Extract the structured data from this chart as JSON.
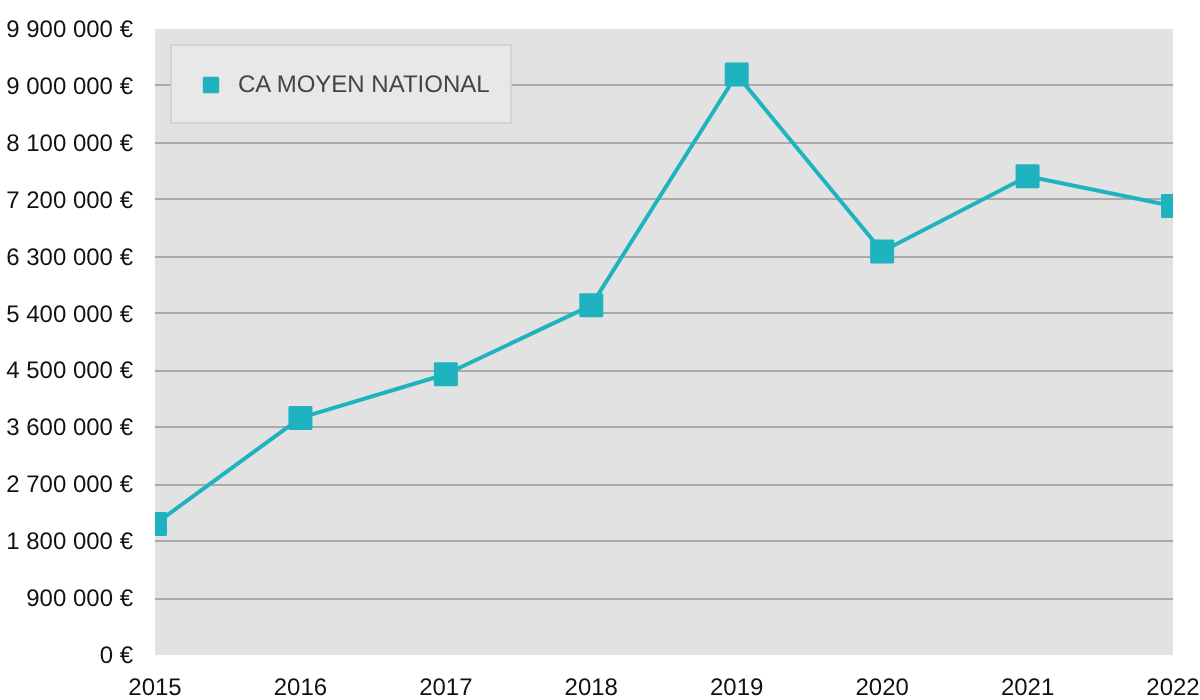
{
  "chart_data": {
    "type": "line",
    "x": [
      2015,
      2016,
      2017,
      2018,
      2019,
      2020,
      2021,
      2022
    ],
    "series": [
      {
        "name": "CA MOYEN NATIONAL",
        "color": "#1fb3c0",
        "values": [
          2070000,
          3750000,
          4440000,
          5530000,
          9180000,
          6380000,
          7570000,
          7100000
        ]
      }
    ],
    "xlim": [
      2015,
      2022
    ],
    "xticks": [
      2015,
      2016,
      2017,
      2018,
      2019,
      2020,
      2021,
      2022
    ],
    "ylim": [
      0,
      9900000
    ],
    "yticks": [
      {
        "value": 0,
        "label": "0 €"
      },
      {
        "value": 900000,
        "label": "900 000 €"
      },
      {
        "value": 1800000,
        "label": "1 800 000 €"
      },
      {
        "value": 2700000,
        "label": "2 700 000 €"
      },
      {
        "value": 3600000,
        "label": "3 600 000 €"
      },
      {
        "value": 4500000,
        "label": "4 500 000 €"
      },
      {
        "value": 5400000,
        "label": "5 400 000 €"
      },
      {
        "value": 6300000,
        "label": "6 300 000 €"
      },
      {
        "value": 7200000,
        "label": "7 200 000 €"
      },
      {
        "value": 8100000,
        "label": "8 100 000 €"
      },
      {
        "value": 9000000,
        "label": "9 000 000 €"
      },
      {
        "value": 9900000,
        "label": "9 900 000 €"
      }
    ],
    "grid": "y",
    "legend": "top left",
    "marker": "square",
    "line_style": "solid"
  }
}
